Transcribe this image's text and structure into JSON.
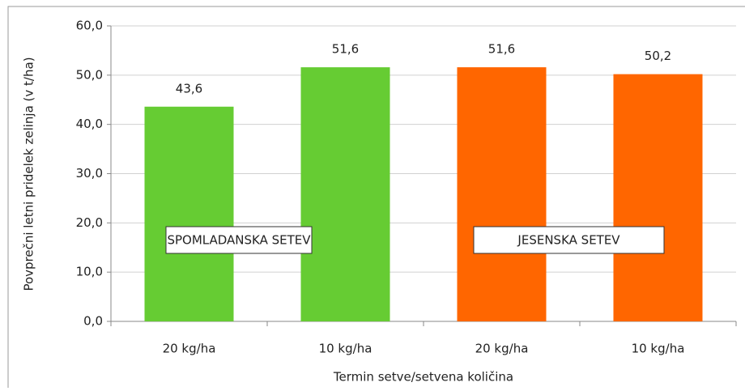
{
  "chart_data": {
    "type": "bar",
    "categories": [
      "20 kg/ha",
      "10 kg/ha",
      "20 kg/ha",
      "10 kg/ha"
    ],
    "values": [
      43.6,
      51.6,
      51.6,
      50.2
    ],
    "value_labels": [
      "43,6",
      "51,6",
      "51,6",
      "50,2"
    ],
    "colors": [
      "#66cc33",
      "#66cc33",
      "#ff6600",
      "#ff6600"
    ],
    "x_label": "Termin setve/setvena količina",
    "y_label": "Povprečni letni pridelek zelinja  (v t/ha)",
    "ylim": [
      0,
      60
    ],
    "yticks": [
      {
        "value": 0,
        "label": "0,0"
      },
      {
        "value": 10,
        "label": "10,0"
      },
      {
        "value": 20,
        "label": "20,0"
      },
      {
        "value": 30,
        "label": "30,0"
      },
      {
        "value": 40,
        "label": "40,0"
      },
      {
        "value": 50,
        "label": "50,0"
      },
      {
        "value": 60,
        "label": "60,0"
      }
    ],
    "grid": true,
    "annotations": [
      "SPOMLADANSKA SETEV",
      "JESENSKA SETEV"
    ]
  }
}
